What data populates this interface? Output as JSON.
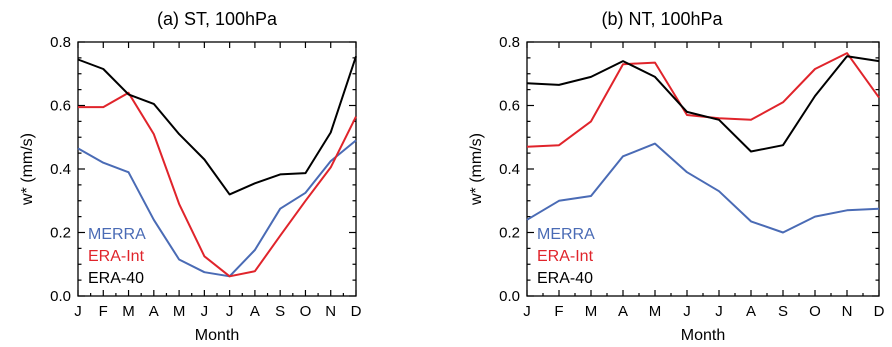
{
  "colors": {
    "MERRA": "#4a6bb5",
    "ERA-Int": "#e0242b",
    "ERA-40": "#000000"
  },
  "chart_data": [
    {
      "type": "line",
      "title": "(a) ST, 100hPa",
      "xlabel": "Month",
      "ylabel": "w* (mm/s)",
      "categories": [
        "J",
        "F",
        "M",
        "A",
        "M",
        "J",
        "J",
        "A",
        "S",
        "O",
        "N",
        "D"
      ],
      "ylim": [
        0.0,
        0.8
      ],
      "yticks": [
        "0.0",
        "0.2",
        "0.4",
        "0.6",
        "0.8"
      ],
      "legend_position": "bottom-left",
      "series": [
        {
          "name": "MERRA",
          "values": [
            0.465,
            0.42,
            0.39,
            0.24,
            0.115,
            0.075,
            0.062,
            0.145,
            0.275,
            0.325,
            0.425,
            0.49
          ]
        },
        {
          "name": "ERA-Int",
          "values": [
            0.595,
            0.595,
            0.64,
            0.51,
            0.29,
            0.125,
            0.062,
            0.078,
            0.19,
            0.3,
            0.405,
            0.565
          ]
        },
        {
          "name": "ERA-40",
          "values": [
            0.745,
            0.715,
            0.635,
            0.605,
            0.51,
            0.43,
            0.32,
            0.355,
            0.383,
            0.387,
            0.515,
            0.755
          ]
        }
      ]
    },
    {
      "type": "line",
      "title": "(b) NT, 100hPa",
      "xlabel": "Month",
      "ylabel": "w* (mm/s)",
      "categories": [
        "J",
        "F",
        "M",
        "A",
        "M",
        "J",
        "J",
        "A",
        "S",
        "O",
        "N",
        "D"
      ],
      "ylim": [
        0.0,
        0.8
      ],
      "yticks": [
        "0.0",
        "0.2",
        "0.4",
        "0.6",
        "0.8"
      ],
      "legend_position": "bottom-left",
      "series": [
        {
          "name": "MERRA",
          "values": [
            0.24,
            0.3,
            0.315,
            0.44,
            0.48,
            0.39,
            0.33,
            0.235,
            0.2,
            0.25,
            0.27,
            0.275
          ]
        },
        {
          "name": "ERA-Int",
          "values": [
            0.47,
            0.475,
            0.55,
            0.73,
            0.735,
            0.57,
            0.56,
            0.555,
            0.61,
            0.715,
            0.765,
            0.625
          ]
        },
        {
          "name": "ERA-40",
          "values": [
            0.67,
            0.665,
            0.69,
            0.74,
            0.69,
            0.58,
            0.555,
            0.455,
            0.475,
            0.63,
            0.755,
            0.74
          ]
        }
      ]
    }
  ]
}
